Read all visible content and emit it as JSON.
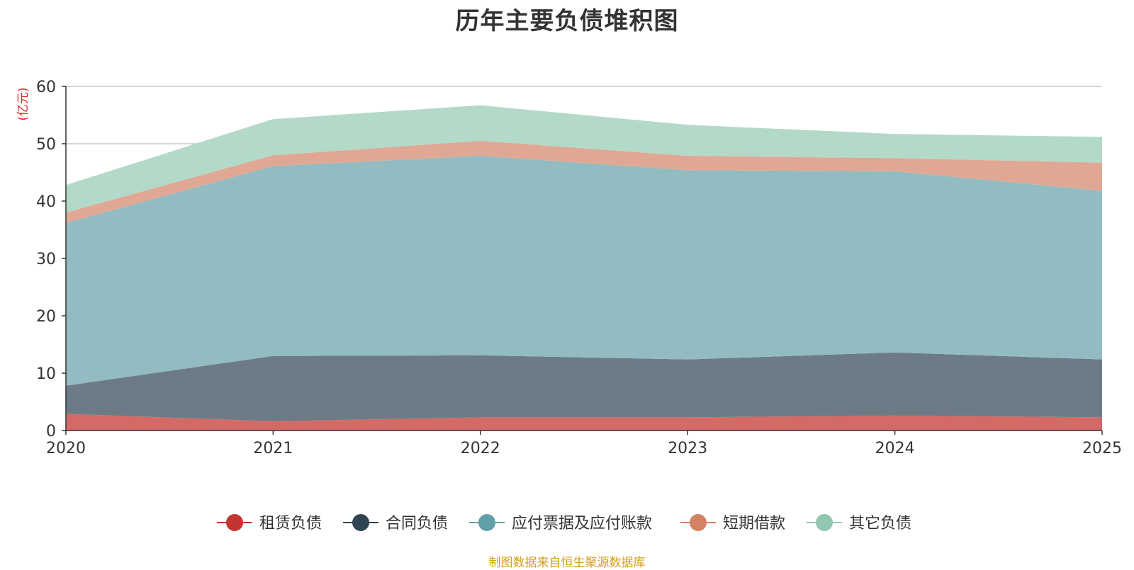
{
  "chart_data": {
    "type": "area",
    "stacked": true,
    "title": "历年主要负债堆积图",
    "ylabel": "(亿元)",
    "xlabel": "",
    "x": [
      "2020",
      "2021",
      "2022",
      "2023",
      "2024",
      "2025"
    ],
    "ylim": [
      0,
      60
    ],
    "yticks": [
      "0",
      "10",
      "20",
      "30",
      "40",
      "50",
      "60"
    ],
    "grid": true,
    "legend_position": "bottom",
    "series": [
      {
        "name": "租赁负债",
        "color": "#c23531",
        "fill": "#d46a66",
        "values": [
          2.9,
          1.6,
          2.3,
          2.3,
          2.6,
          2.3
        ]
      },
      {
        "name": "合同负债",
        "color": "#2f4554",
        "fill": "#6d7b86",
        "values": [
          4.9,
          11.4,
          10.8,
          10.1,
          11.0,
          10.1
        ]
      },
      {
        "name": "应付票据及应付账款",
        "color": "#61a0a8",
        "fill": "#92bbc2",
        "values": [
          28.4,
          33.1,
          34.8,
          33.0,
          31.6,
          29.4
        ]
      },
      {
        "name": "短期借款",
        "color": "#d48265",
        "fill": "#e0a894",
        "values": [
          1.8,
          1.9,
          2.6,
          2.5,
          2.3,
          4.9
        ]
      },
      {
        "name": "其它负债",
        "color": "#91c7ae",
        "fill": "#b3d9c8",
        "values": [
          4.8,
          6.3,
          6.2,
          5.4,
          4.2,
          4.5
        ]
      }
    ]
  },
  "source_note": "制图数据来自恒生聚源数据库"
}
